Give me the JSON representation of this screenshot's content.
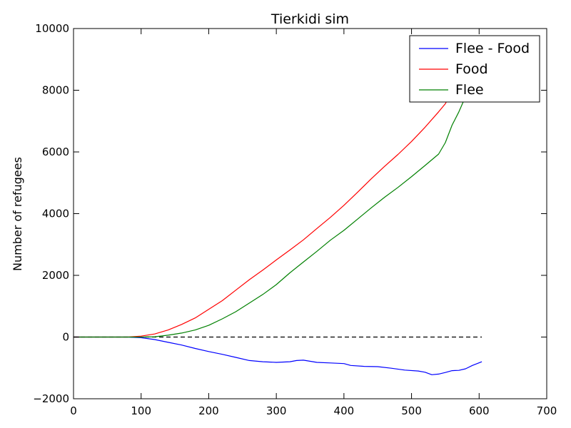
{
  "chart_data": {
    "type": "line",
    "title": "Tierkidi sim",
    "xlabel": "",
    "ylabel": "Number of refugees",
    "xlim": [
      0,
      700
    ],
    "ylim": [
      -2000,
      10000
    ],
    "xticks": [
      "0",
      "100",
      "200",
      "300",
      "400",
      "500",
      "600",
      "700"
    ],
    "yticks": [
      "−2000",
      "0",
      "2000",
      "4000",
      "6000",
      "8000",
      "10000"
    ],
    "grid": false,
    "legend_position": "top-right",
    "reference_line": {
      "y": 0,
      "x_range": [
        0,
        604
      ],
      "style": "dashed",
      "color": "#000000"
    },
    "series": [
      {
        "name": "Flee - Food",
        "color": "#0000ff",
        "points": [
          [
            0,
            0
          ],
          [
            80,
            0
          ],
          [
            100,
            -20
          ],
          [
            120,
            -80
          ],
          [
            140,
            -170
          ],
          [
            160,
            -260
          ],
          [
            180,
            -370
          ],
          [
            200,
            -470
          ],
          [
            220,
            -560
          ],
          [
            240,
            -660
          ],
          [
            260,
            -760
          ],
          [
            280,
            -800
          ],
          [
            300,
            -820
          ],
          [
            320,
            -800
          ],
          [
            330,
            -760
          ],
          [
            340,
            -750
          ],
          [
            360,
            -820
          ],
          [
            380,
            -840
          ],
          [
            400,
            -860
          ],
          [
            410,
            -920
          ],
          [
            430,
            -950
          ],
          [
            450,
            -960
          ],
          [
            470,
            -1010
          ],
          [
            490,
            -1070
          ],
          [
            510,
            -1100
          ],
          [
            520,
            -1140
          ],
          [
            530,
            -1220
          ],
          [
            540,
            -1200
          ],
          [
            550,
            -1150
          ],
          [
            560,
            -1090
          ],
          [
            570,
            -1080
          ],
          [
            580,
            -1030
          ],
          [
            590,
            -920
          ],
          [
            604,
            -800
          ]
        ]
      },
      {
        "name": "Food",
        "color": "#ff0000",
        "points": [
          [
            0,
            0
          ],
          [
            80,
            0
          ],
          [
            100,
            30
          ],
          [
            120,
            100
          ],
          [
            140,
            230
          ],
          [
            160,
            410
          ],
          [
            180,
            620
          ],
          [
            200,
            900
          ],
          [
            220,
            1180
          ],
          [
            240,
            1520
          ],
          [
            260,
            1860
          ],
          [
            280,
            2170
          ],
          [
            300,
            2500
          ],
          [
            320,
            2820
          ],
          [
            340,
            3150
          ],
          [
            360,
            3520
          ],
          [
            380,
            3880
          ],
          [
            400,
            4270
          ],
          [
            420,
            4690
          ],
          [
            440,
            5120
          ],
          [
            460,
            5530
          ],
          [
            480,
            5920
          ],
          [
            500,
            6340
          ],
          [
            520,
            6800
          ],
          [
            540,
            7300
          ],
          [
            550,
            7560
          ],
          [
            556,
            7800
          ]
        ]
      },
      {
        "name": "Flee",
        "color": "#008000",
        "points": [
          [
            0,
            0
          ],
          [
            100,
            0
          ],
          [
            120,
            10
          ],
          [
            140,
            60
          ],
          [
            160,
            130
          ],
          [
            180,
            230
          ],
          [
            200,
            380
          ],
          [
            220,
            590
          ],
          [
            240,
            820
          ],
          [
            260,
            1100
          ],
          [
            280,
            1380
          ],
          [
            300,
            1700
          ],
          [
            320,
            2080
          ],
          [
            340,
            2430
          ],
          [
            360,
            2780
          ],
          [
            380,
            3140
          ],
          [
            400,
            3460
          ],
          [
            420,
            3820
          ],
          [
            440,
            4180
          ],
          [
            460,
            4530
          ],
          [
            480,
            4850
          ],
          [
            500,
            5200
          ],
          [
            520,
            5560
          ],
          [
            540,
            5930
          ],
          [
            550,
            6300
          ],
          [
            560,
            6870
          ],
          [
            570,
            7300
          ],
          [
            580,
            7800
          ]
        ]
      }
    ]
  }
}
